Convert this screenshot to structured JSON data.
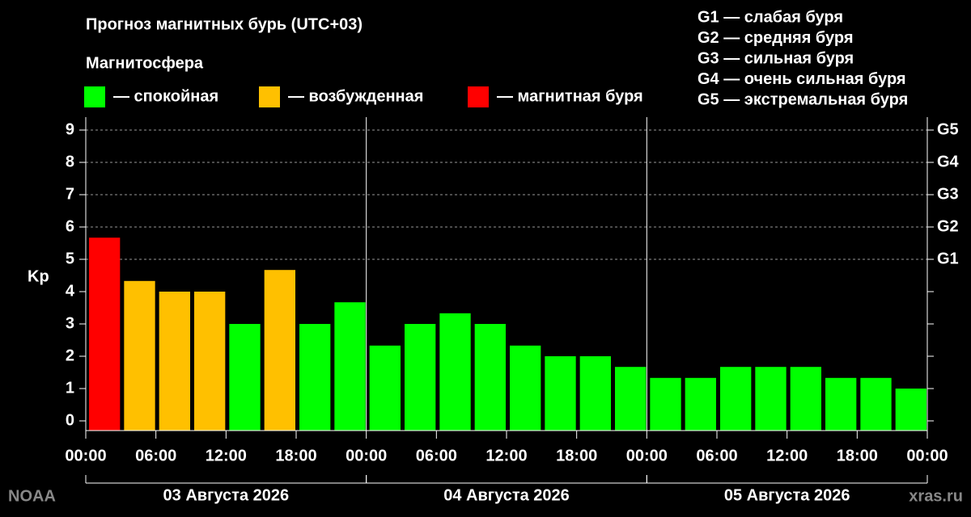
{
  "chart_data": {
    "type": "bar",
    "title": "Прогноз магнитных бурь (UTC+03)",
    "legend_title": "Магнитосфера",
    "legend": [
      {
        "color": "#00ff00",
        "label": "— спокойная"
      },
      {
        "color": "#ffc000",
        "label": "— возбужденная"
      },
      {
        "color": "#ff0000",
        "label": "— магнитная буря"
      }
    ],
    "g_levels": [
      "G1 — слабая буря",
      "G2 — средняя буря",
      "G3 — сильная буря",
      "G4 — очень сильная буря",
      "G5 — экстремальная буря"
    ],
    "y_label": "Kp",
    "x": [
      0,
      3,
      6,
      9,
      12,
      15,
      18,
      21,
      24,
      27,
      30,
      33,
      36,
      39,
      42,
      45,
      48,
      51,
      54,
      57,
      60,
      63,
      66,
      69
    ],
    "bar_hours": 3,
    "values": [
      5.67,
      4.33,
      4,
      4,
      3,
      4.67,
      3,
      3.67,
      2.33,
      3,
      3.33,
      3,
      2.33,
      2,
      2,
      1.67,
      1.33,
      1.33,
      1.67,
      1.67,
      1.67,
      1.33,
      1.33,
      1
    ],
    "colors": [
      "#ff0000",
      "#ffc000",
      "#ffc000",
      "#ffc000",
      "#00ff00",
      "#ffc000",
      "#00ff00",
      "#00ff00",
      "#00ff00",
      "#00ff00",
      "#00ff00",
      "#00ff00",
      "#00ff00",
      "#00ff00",
      "#00ff00",
      "#00ff00",
      "#00ff00",
      "#00ff00",
      "#00ff00",
      "#00ff00",
      "#00ff00",
      "#00ff00",
      "#00ff00",
      "#00ff00"
    ],
    "xlim": [
      0,
      72
    ],
    "xticks": [
      {
        "value": 0,
        "label": "00:00"
      },
      {
        "value": 6,
        "label": "06:00"
      },
      {
        "value": 12,
        "label": "12:00"
      },
      {
        "value": 18,
        "label": "18:00"
      },
      {
        "value": 24,
        "label": "00:00"
      },
      {
        "value": 30,
        "label": "06:00"
      },
      {
        "value": 36,
        "label": "12:00"
      },
      {
        "value": 42,
        "label": "18:00"
      },
      {
        "value": 48,
        "label": "00:00"
      },
      {
        "value": 54,
        "label": "06:00"
      },
      {
        "value": 60,
        "label": "12:00"
      },
      {
        "value": 66,
        "label": "18:00"
      },
      {
        "value": 72,
        "label": "00:00"
      }
    ],
    "days": [
      {
        "label": "03 Августа 2026",
        "range": [
          0,
          24
        ]
      },
      {
        "label": "04 Августа 2026",
        "range": [
          24,
          48
        ]
      },
      {
        "label": "05 Августа 2026",
        "range": [
          48,
          72
        ]
      }
    ],
    "ylim": [
      -0.3,
      9.4
    ],
    "yticks": [
      0,
      1,
      2,
      3,
      4,
      5,
      6,
      7,
      8,
      9
    ],
    "y2ticks": [
      {
        "value": 5,
        "label": "G1"
      },
      {
        "value": 6,
        "label": "G2"
      },
      {
        "value": 7,
        "label": "G3"
      },
      {
        "value": 8,
        "label": "G4"
      },
      {
        "value": 9,
        "label": "G5"
      }
    ],
    "grid": true,
    "source": "NOAA",
    "site": "xras.ru"
  }
}
